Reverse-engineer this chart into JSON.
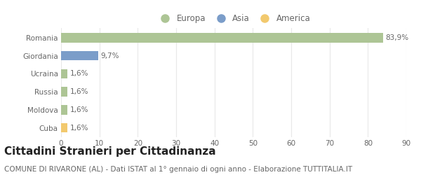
{
  "categories": [
    "Romania",
    "Giordania",
    "Ucraina",
    "Russia",
    "Moldova",
    "Cuba"
  ],
  "values": [
    83.9,
    9.7,
    1.6,
    1.6,
    1.6,
    1.6
  ],
  "labels": [
    "83,9%",
    "9,7%",
    "1,6%",
    "1,6%",
    "1,6%",
    "1,6%"
  ],
  "colors": [
    "#adc595",
    "#7b9dc9",
    "#adc595",
    "#adc595",
    "#adc595",
    "#f2c96e"
  ],
  "legend_labels": [
    "Europa",
    "Asia",
    "America"
  ],
  "legend_colors": [
    "#adc595",
    "#7b9dc9",
    "#f2c96e"
  ],
  "xlim": [
    0,
    90
  ],
  "xticks": [
    0,
    10,
    20,
    30,
    40,
    50,
    60,
    70,
    80,
    90
  ],
  "title": "Cittadini Stranieri per Cittadinanza",
  "subtitle": "COMUNE DI RIVARONE (AL) - Dati ISTAT al 1° gennaio di ogni anno - Elaborazione TUTTITALIA.IT",
  "background_color": "#ffffff",
  "plot_background": "#ffffff",
  "grid_color": "#e8e8e8",
  "title_fontsize": 11,
  "subtitle_fontsize": 7.5,
  "label_fontsize": 7.5,
  "tick_fontsize": 7.5,
  "legend_fontsize": 8.5
}
